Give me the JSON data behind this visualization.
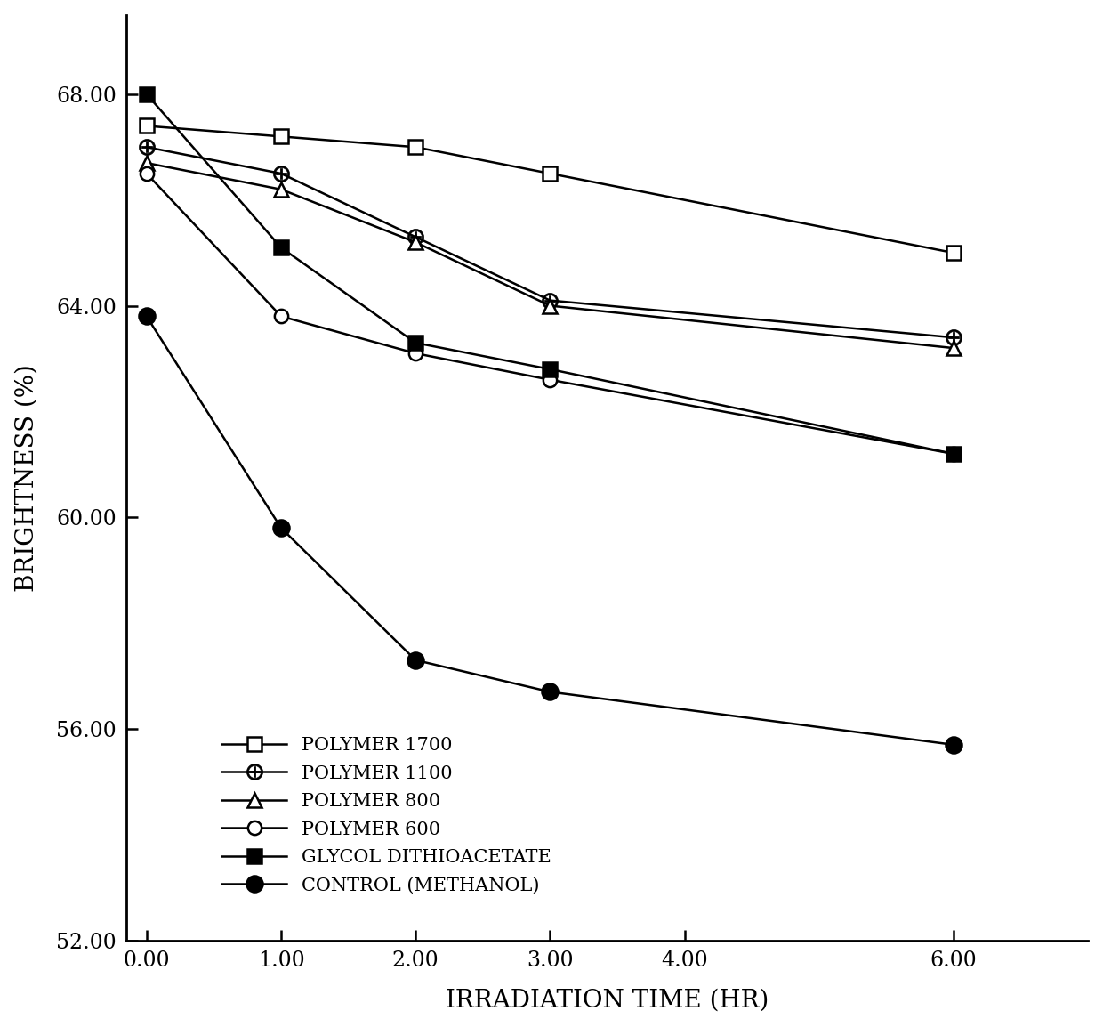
{
  "x_values": [
    0.0,
    1.0,
    2.0,
    3.0,
    6.0
  ],
  "series": [
    {
      "label": "POLYMER 1700",
      "y": [
        67.4,
        67.2,
        67.0,
        66.5,
        65.0
      ],
      "marker": "s",
      "mfc": "white",
      "mec": "black",
      "ms": 11
    },
    {
      "label": "POLYMER 1100",
      "y": [
        67.0,
        66.5,
        65.3,
        64.1,
        63.4
      ],
      "marker": "circle_cross",
      "mfc": "white",
      "mec": "black",
      "ms": 11
    },
    {
      "label": "POLYMER 800",
      "y": [
        66.7,
        66.2,
        65.2,
        64.0,
        63.2
      ],
      "marker": "^",
      "mfc": "white",
      "mec": "black",
      "ms": 11
    },
    {
      "label": "POLYMER 600",
      "y": [
        66.5,
        63.8,
        63.1,
        62.6,
        61.2
      ],
      "marker": "o",
      "mfc": "white",
      "mec": "black",
      "ms": 11
    },
    {
      "label": "GLYCOL DITHIOACETATE",
      "y": [
        68.0,
        65.1,
        63.3,
        62.8,
        61.2
      ],
      "marker": "s",
      "mfc": "black",
      "mec": "black",
      "ms": 11
    },
    {
      "label": "CONTROL (METHANOL)",
      "y": [
        63.8,
        59.8,
        57.3,
        56.7,
        55.7
      ],
      "marker": "o",
      "mfc": "black",
      "mec": "black",
      "ms": 13
    }
  ],
  "xlabel": "IRRADIATION TIME (HR)",
  "ylabel": "BRIGHTNESS (%)",
  "xlim": [
    -0.15,
    7.0
  ],
  "ylim": [
    52.0,
    69.5
  ],
  "xtick_positions": [
    0.0,
    1.0,
    2.0,
    3.0,
    4.0,
    6.0
  ],
  "xtick_labels": [
    "0.00",
    "1.00",
    "2.00",
    "3.00",
    "4.00",
    "6.00"
  ],
  "ytick_positions": [
    52.0,
    56.0,
    60.0,
    64.0,
    68.0
  ],
  "ytick_labels": [
    "52.00",
    "56.00",
    "60.00",
    "64.00",
    "68.00"
  ],
  "background_color": "#ffffff",
  "line_color": "#000000",
  "linewidth": 1.8,
  "tick_fontsize": 17,
  "label_fontsize": 20,
  "legend_fontsize": 15
}
